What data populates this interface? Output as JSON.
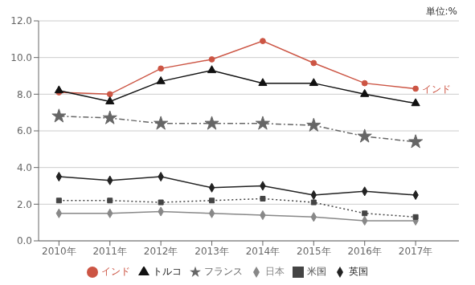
{
  "chart_data": {
    "type": "line",
    "x": [
      2010,
      2011,
      2012,
      2013,
      2014,
      2015,
      2016,
      2017
    ],
    "xlim": [
      2009.6,
      2017.85
    ],
    "xticks": [
      {
        "value": 2010,
        "label": "2010年"
      },
      {
        "value": 2011,
        "label": "2011年"
      },
      {
        "value": 2012,
        "label": "2012年"
      },
      {
        "value": 2013,
        "label": "2013年"
      },
      {
        "value": 2014,
        "label": "2014年"
      },
      {
        "value": 2015,
        "label": "2015年"
      },
      {
        "value": 2016,
        "label": "2016年"
      },
      {
        "value": 2017,
        "label": "2017年"
      }
    ],
    "ylim": [
      0.0,
      12.0
    ],
    "yticks": [
      {
        "value": 0.0,
        "label": "0.0"
      },
      {
        "value": 2.0,
        "label": "2.0"
      },
      {
        "value": 4.0,
        "label": "4.0"
      },
      {
        "value": 6.0,
        "label": "6.0"
      },
      {
        "value": 8.0,
        "label": "8.0"
      },
      {
        "value": 10.0,
        "label": "10.0"
      },
      {
        "value": 12.0,
        "label": "12.0"
      }
    ],
    "grid": true,
    "legend": "bottom",
    "series": [
      {
        "name": "日本",
        "color": "#888888",
        "marker": "diamond",
        "line_style": "solid",
        "values": [
          1.5,
          1.5,
          1.6,
          1.5,
          1.4,
          1.3,
          1.1,
          1.1
        ]
      },
      {
        "name": "インド",
        "color": "#cc5544",
        "marker": "circle",
        "line_style": "solid",
        "values": [
          8.1,
          8.0,
          9.4,
          9.9,
          10.9,
          9.7,
          8.6,
          8.3
        ]
      },
      {
        "name": "米国",
        "color": "#444444",
        "marker": "square",
        "line_style": "dotted",
        "values": [
          2.2,
          2.2,
          2.1,
          2.2,
          2.3,
          2.1,
          1.5,
          1.3
        ]
      },
      {
        "name": "フランス",
        "color": "#666666",
        "marker": "star",
        "line_style": "dashdot",
        "values": [
          6.8,
          6.7,
          6.4,
          6.4,
          6.4,
          6.3,
          5.7,
          5.4
        ]
      },
      {
        "name": "英国",
        "color": "#222222",
        "marker": "diamond",
        "line_style": "solid",
        "values": [
          3.5,
          3.3,
          3.5,
          2.9,
          3.0,
          2.5,
          2.7,
          2.5
        ]
      },
      {
        "name": "トルコ",
        "color": "#111111",
        "marker": "triangle",
        "line_style": "solid",
        "values": [
          8.2,
          7.6,
          8.7,
          9.3,
          8.6,
          8.6,
          8.0,
          7.5
        ]
      }
    ],
    "annotations": [
      {
        "text": "単位:%"
      },
      {
        "text": "インド",
        "series": "インド"
      }
    ]
  }
}
